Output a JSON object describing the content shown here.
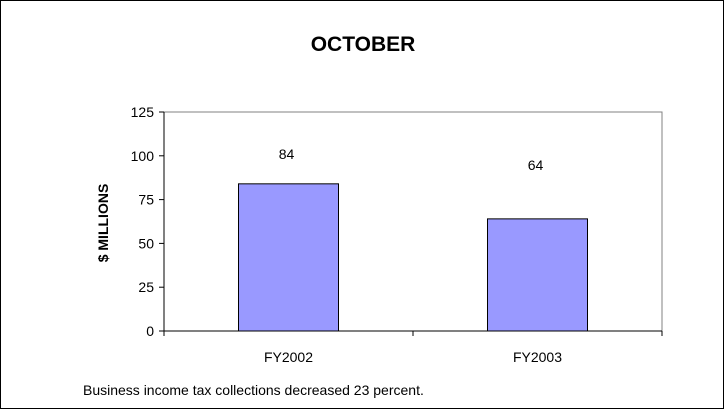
{
  "chart_data": {
    "type": "bar",
    "title": "OCTOBER",
    "ylabel": "$ MILLIONS",
    "xlabel": "",
    "categories": [
      "FY2002",
      "FY2003"
    ],
    "values": [
      84,
      64
    ],
    "data_labels": [
      "84",
      "64"
    ],
    "ylim": [
      0,
      125
    ],
    "yticks": [
      0,
      25,
      50,
      75,
      100,
      125
    ],
    "grid": false,
    "legend": "none",
    "bar_color": "#9999ff"
  },
  "caption": "Business income tax collections decreased 23 percent."
}
